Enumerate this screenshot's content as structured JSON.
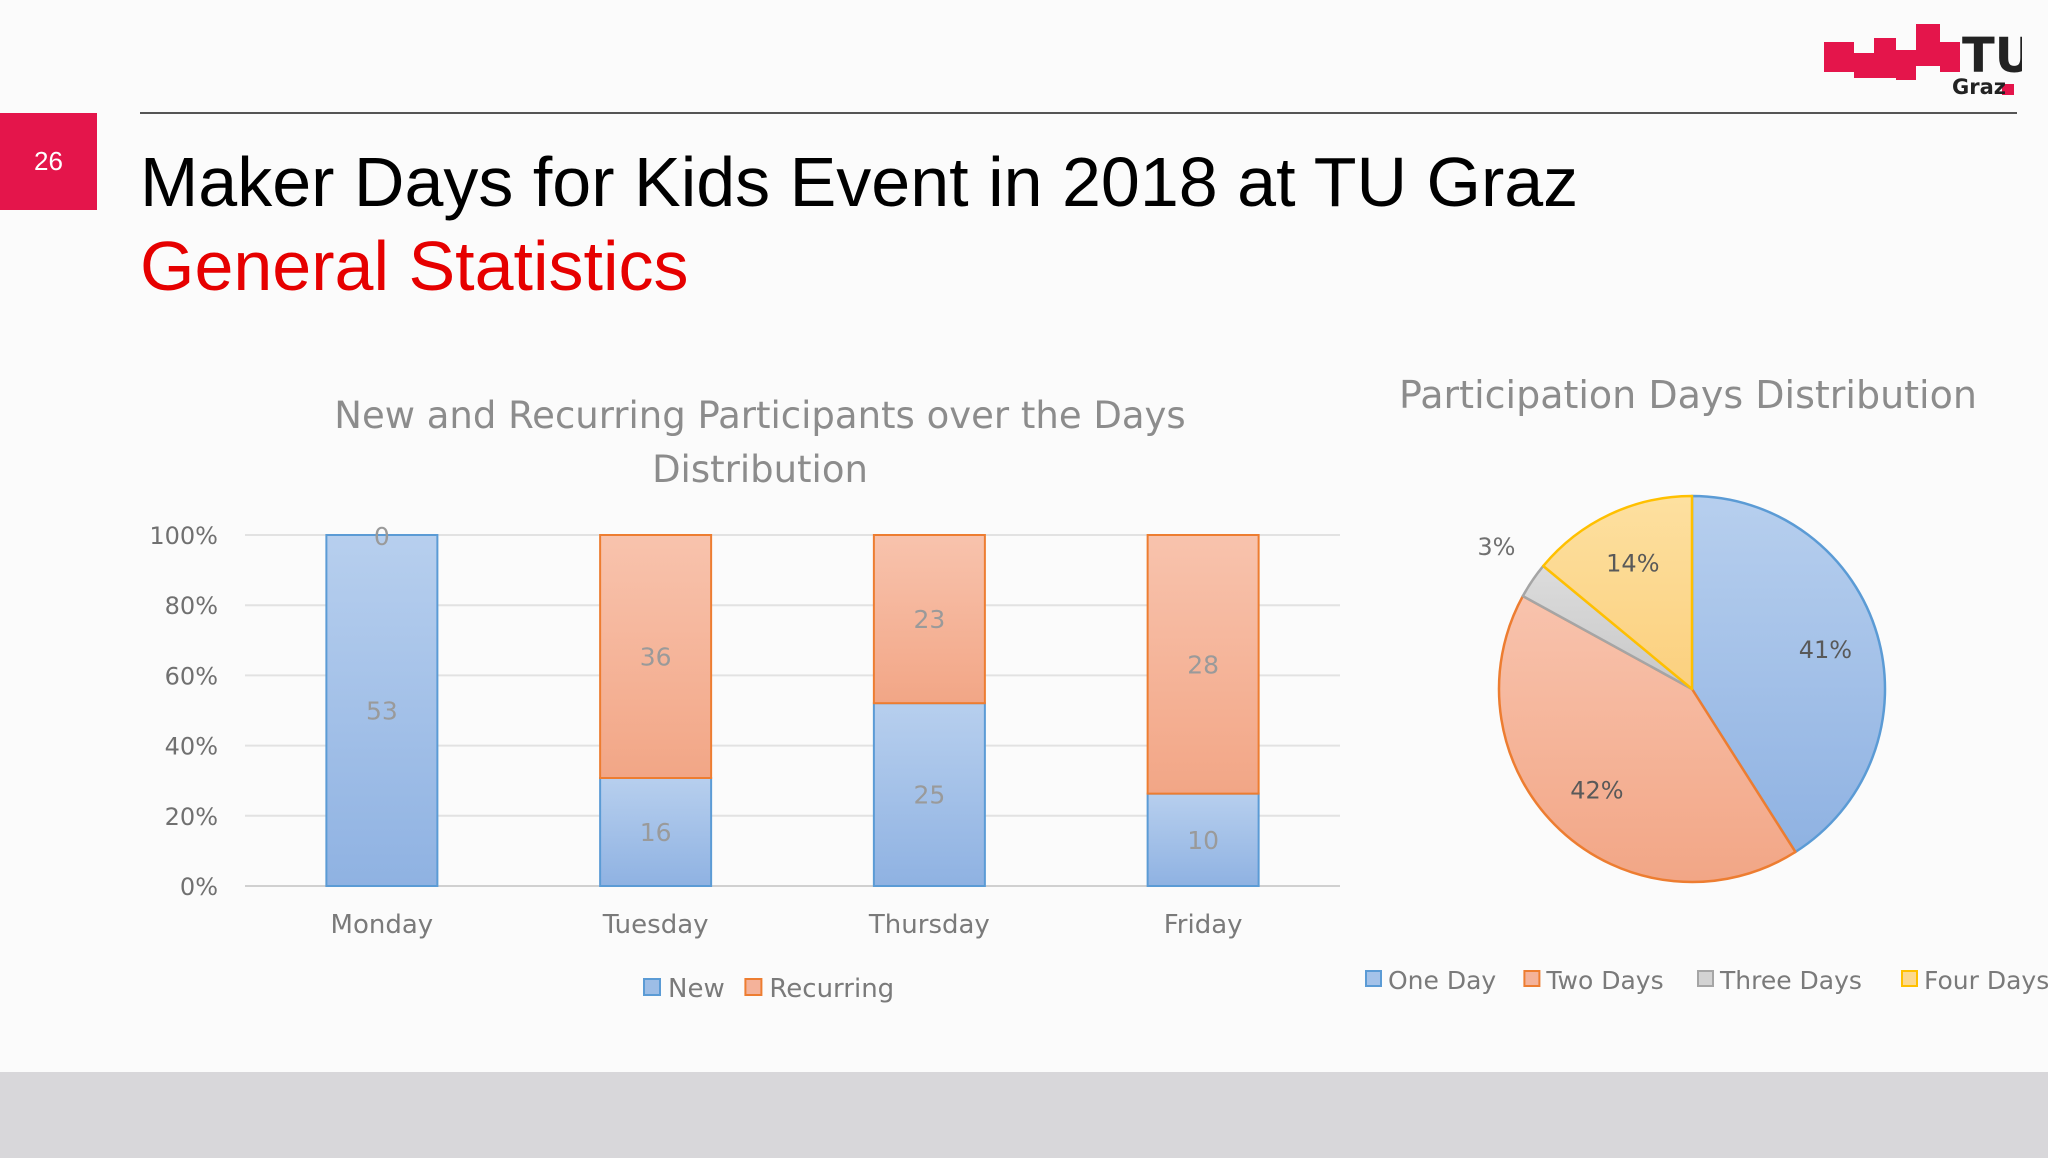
{
  "slide": {
    "page_number": "26",
    "title": "Maker Days for Kids Event in 2018 at TU Graz",
    "subtitle": "General Statistics",
    "logo_text": {
      "line1": "TU",
      "line2": "Graz"
    },
    "colors": {
      "accent": "#e4154b",
      "subtitle": "#e60000"
    }
  },
  "chart_data": [
    {
      "type": "bar",
      "stacked": "percent",
      "title": "New and Recurring Participants over the Days Distribution",
      "title_lines": [
        "New and Recurring Participants over the Days",
        "Distribution"
      ],
      "categories": [
        "Monday",
        "Tuesday",
        "Thursday",
        "Friday"
      ],
      "series": [
        {
          "name": "New",
          "values": [
            53,
            16,
            25,
            10
          ],
          "color": "#9dbde6",
          "stroke": "#5b9bd5"
        },
        {
          "name": "Recurring",
          "values": [
            0,
            36,
            23,
            28
          ],
          "color": "#f4b29a",
          "stroke": "#ed7d31"
        }
      ],
      "data_labels": {
        "Monday": [
          "53",
          "0"
        ],
        "Tuesday": [
          "16",
          "36"
        ],
        "Thursday": [
          "25",
          "23"
        ],
        "Friday": [
          "10",
          "28"
        ]
      },
      "y_ticks": [
        "0%",
        "20%",
        "40%",
        "60%",
        "80%",
        "100%"
      ],
      "ylim": [
        0,
        100
      ],
      "grid": true,
      "legend_position": "bottom"
    },
    {
      "type": "pie",
      "title": "Participation Days Distribution",
      "slices": [
        {
          "name": "One Day",
          "value": 41,
          "label": "41%",
          "color": "#a4c2e9",
          "stroke": "#5b9bd5"
        },
        {
          "name": "Two Days",
          "value": 42,
          "label": "42%",
          "color": "#f4b29a",
          "stroke": "#ed7d31"
        },
        {
          "name": "Three Days",
          "value": 3,
          "label": "3%",
          "color": "#d3d3d3",
          "stroke": "#a5a5a5"
        },
        {
          "name": "Four Days",
          "value": 14,
          "label": "14%",
          "color": "#fcd98f",
          "stroke": "#ffc000"
        }
      ],
      "legend_position": "bottom"
    }
  ]
}
